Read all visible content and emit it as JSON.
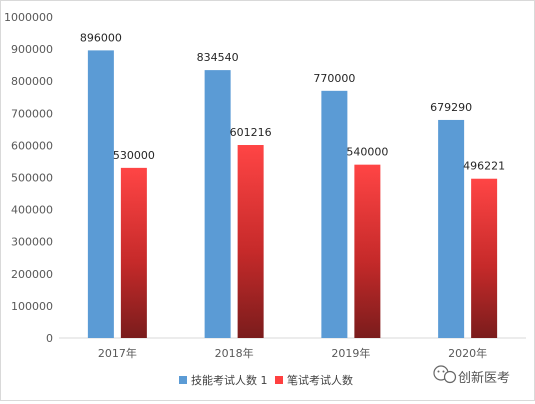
{
  "chart_data": {
    "type": "bar",
    "categories": [
      "2017年",
      "2018年",
      "2019年",
      "2020年"
    ],
    "series": [
      {
        "name": "技能考试人数 1",
        "values": [
          896000,
          834540,
          770000,
          679290
        ],
        "color": "#5b9bd5"
      },
      {
        "name": "笔试考试人数",
        "values": [
          530000,
          601216,
          540000,
          496221
        ],
        "color": "#ff4040"
      }
    ],
    "title": "",
    "xlabel": "",
    "ylabel": "",
    "ylim": [
      0,
      1000000
    ],
    "yticks": [
      0,
      100000,
      200000,
      300000,
      400000,
      500000,
      600000,
      700000,
      800000,
      900000,
      1000000
    ],
    "grid": false,
    "legend_position": "bottom"
  },
  "watermark": {
    "text": "创新医考",
    "icon": "wechat-icon"
  }
}
